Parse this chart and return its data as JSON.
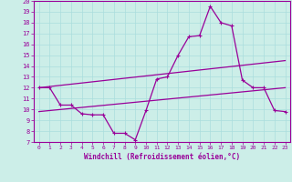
{
  "xlabel": "Windchill (Refroidissement éolien,°C)",
  "ylabel": "",
  "bg_color": "#cceee8",
  "line_color": "#990099",
  "grid_color": "#aadddd",
  "xlim": [
    -0.5,
    23.5
  ],
  "ylim": [
    7,
    20
  ],
  "xticks": [
    0,
    1,
    2,
    3,
    4,
    5,
    6,
    7,
    8,
    9,
    10,
    11,
    12,
    13,
    14,
    15,
    16,
    17,
    18,
    19,
    20,
    21,
    22,
    23
  ],
  "yticks": [
    7,
    8,
    9,
    10,
    11,
    12,
    13,
    14,
    15,
    16,
    17,
    18,
    19,
    20
  ],
  "main_x": [
    0,
    1,
    2,
    3,
    4,
    5,
    6,
    7,
    8,
    9,
    10,
    11,
    12,
    13,
    14,
    15,
    16,
    17,
    18,
    19,
    20,
    21,
    22,
    23
  ],
  "main_y": [
    12.0,
    12.0,
    10.4,
    10.4,
    9.6,
    9.5,
    9.5,
    7.8,
    7.8,
    7.2,
    9.9,
    12.8,
    13.0,
    15.0,
    16.7,
    16.8,
    19.5,
    18.0,
    17.7,
    12.7,
    12.0,
    12.0,
    9.9,
    9.8
  ],
  "line1_x": [
    0,
    23
  ],
  "line1_y": [
    12.0,
    14.5
  ],
  "line2_x": [
    0,
    23
  ],
  "line2_y": [
    9.8,
    12.0
  ]
}
